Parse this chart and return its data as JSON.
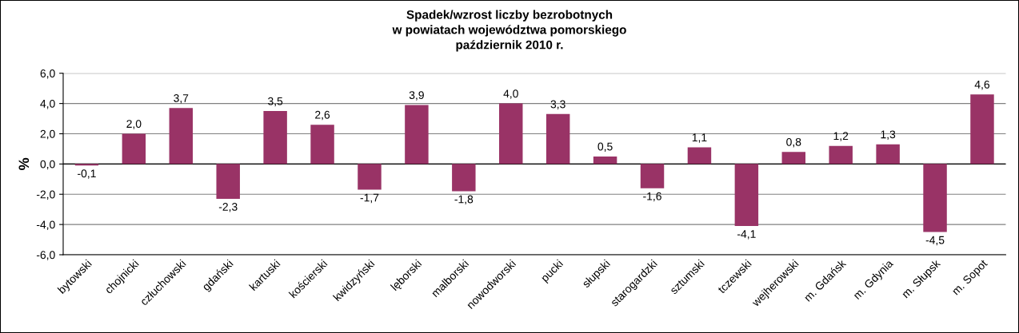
{
  "chart_data": {
    "type": "bar",
    "title": "Spadek/wzrost liczby bezrobotnych\nw powiatach województwa pomorskiego\npaździernik 2010 r.",
    "ylabel": "%",
    "categories": [
      "bytowski",
      "chojnicki",
      "człuchowski",
      "gdański",
      "kartuski",
      "kościerski",
      "kwidzyński",
      "lęborski",
      "malborski",
      "nowodworski",
      "pucki",
      "słupski",
      "starogardzki",
      "sztumski",
      "tczewski",
      "wejherowski",
      "m. Gdańsk",
      "m. Gdynia",
      "m. Słupsk",
      "m. Sopot"
    ],
    "values": [
      -0.1,
      2.0,
      3.7,
      -2.3,
      3.5,
      2.6,
      -1.7,
      3.9,
      -1.8,
      4.0,
      3.3,
      0.5,
      -1.6,
      1.1,
      -4.1,
      0.8,
      1.2,
      1.3,
      -4.5,
      4.6
    ],
    "value_labels": [
      "-0,1",
      "2,0",
      "3,7",
      "-2,3",
      "3,5",
      "2,6",
      "-1,7",
      "3,9",
      "-1,8",
      "4,0",
      "3,3",
      "0,5",
      "-1,6",
      "1,1",
      "-4,1",
      "0,8",
      "1,2",
      "1,3",
      "-4,5",
      "4,6"
    ],
    "color": "#993366",
    "ylim": [
      -6,
      6
    ],
    "yticks": [
      {
        "value": -6,
        "label": "-6,0"
      },
      {
        "value": -4,
        "label": "-4,0"
      },
      {
        "value": -2,
        "label": "-2,0"
      },
      {
        "value": 0,
        "label": "0,0"
      },
      {
        "value": 2,
        "label": "2,0"
      },
      {
        "value": 4,
        "label": "4,0"
      },
      {
        "value": 6,
        "label": "6,0"
      }
    ],
    "grid": "y",
    "legend": false
  }
}
